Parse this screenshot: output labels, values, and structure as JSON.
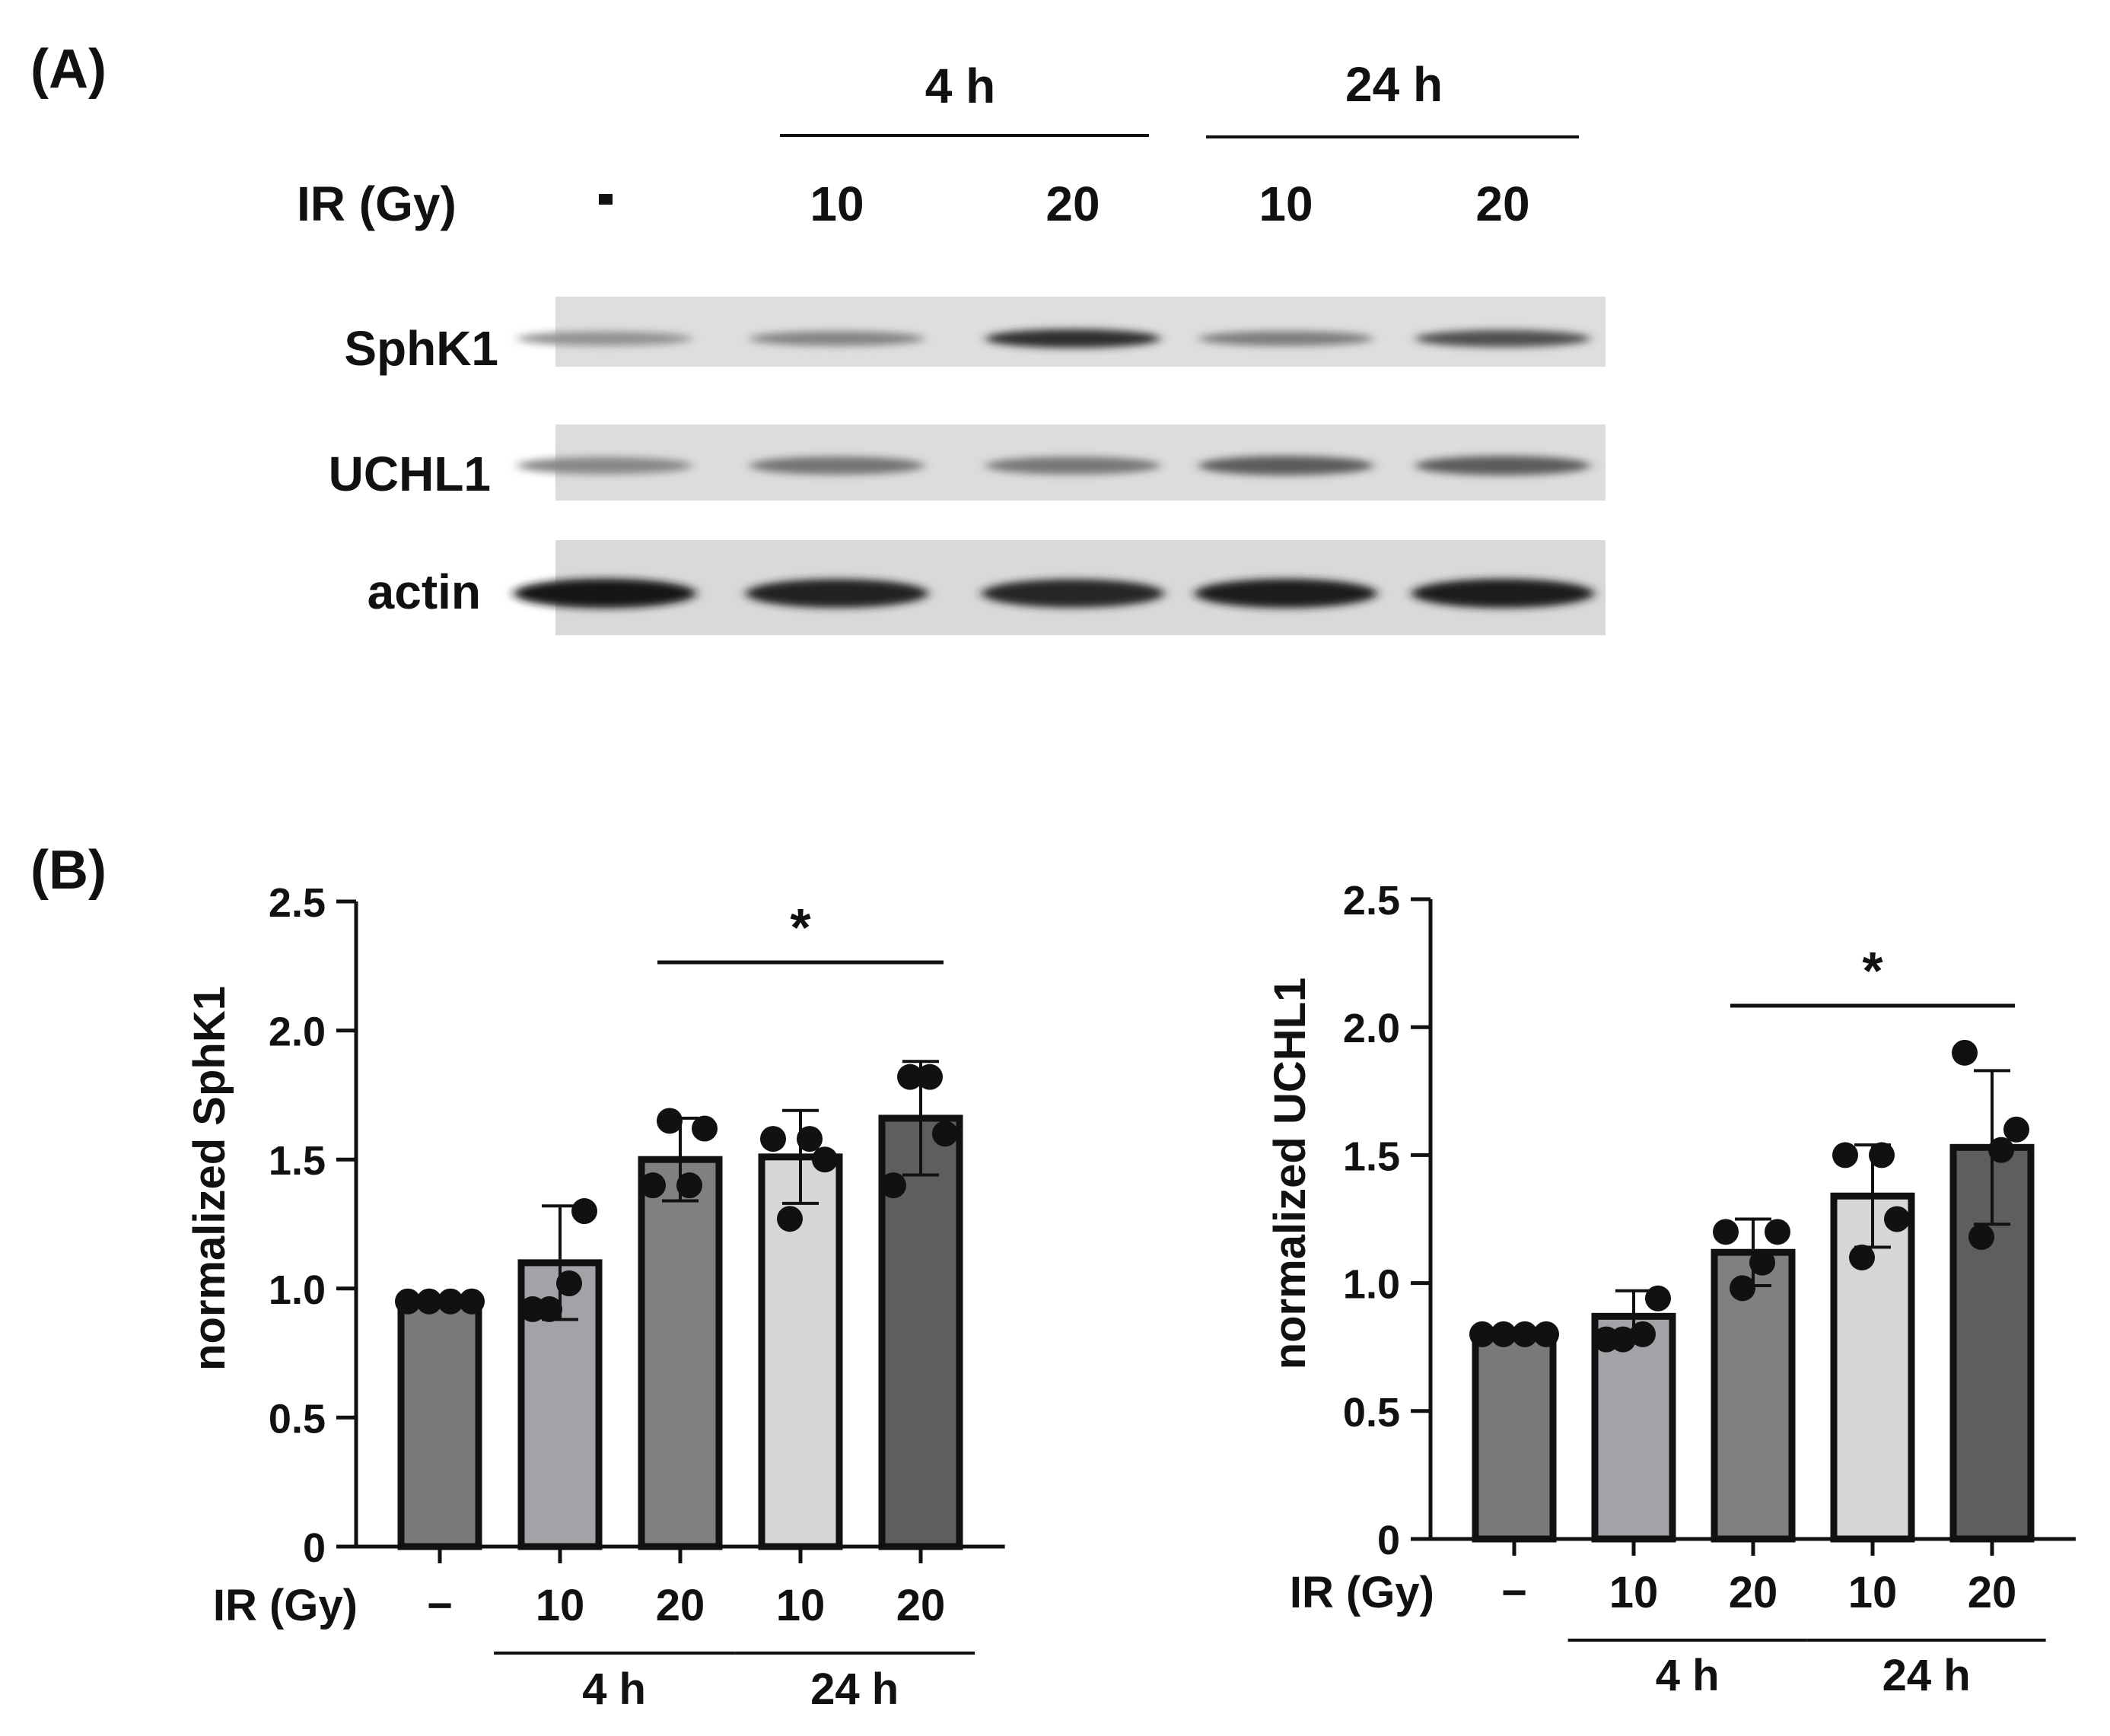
{
  "panel_a": {
    "label": "(A)",
    "time_labels": [
      "4 h",
      "24 h"
    ],
    "ir_label": "IR (Gy)",
    "lane_labels": [
      "-",
      "10",
      "20",
      "10",
      "20"
    ],
    "blots": [
      {
        "protein": "SphK1",
        "intensities": [
          0.35,
          0.42,
          0.85,
          0.45,
          0.68
        ]
      },
      {
        "protein": "UCHL1",
        "intensities": [
          0.4,
          0.5,
          0.48,
          0.62,
          0.62
        ]
      },
      {
        "protein": "actin",
        "intensities": [
          0.95,
          0.9,
          0.88,
          0.92,
          0.92
        ]
      }
    ]
  },
  "panel_b": {
    "label": "(B)",
    "significance": "*",
    "x_prefix": "IR (Gy)",
    "group_labels": [
      "4 h",
      "24 h"
    ]
  },
  "chart_data": [
    {
      "type": "bar",
      "title": "",
      "ylabel": "normalized SphK1",
      "xlabel": "IR (Gy)",
      "categories": [
        "−",
        "10",
        "20",
        "10",
        "20"
      ],
      "groups": [
        "",
        "4 h",
        "4 h",
        "24 h",
        "24 h"
      ],
      "values": [
        0.95,
        1.1,
        1.5,
        1.51,
        1.66
      ],
      "errors": [
        0.0,
        0.22,
        0.16,
        0.18,
        0.22
      ],
      "points": [
        [
          0.95,
          0.95,
          0.95,
          0.95
        ],
        [
          0.92,
          1.3,
          1.02,
          0.92
        ],
        [
          1.4,
          1.62,
          1.4,
          1.65
        ],
        [
          1.58,
          1.5,
          1.58,
          1.27
        ],
        [
          1.4,
          1.6,
          1.82,
          1.82
        ]
      ],
      "bar_colors": [
        "#7a7a7a",
        "#a2a2a7",
        "#808080",
        "#d6d6d6",
        "#5e5e5e"
      ],
      "ylim": [
        0,
        2.5
      ],
      "yticks": [
        "0",
        "0.5",
        "1.0",
        "1.5",
        "2.0",
        "2.5"
      ],
      "significance": {
        "from": 2,
        "to": 4,
        "label": "*"
      }
    },
    {
      "type": "bar",
      "title": "",
      "ylabel": "normalized UCHL1",
      "xlabel": "IR (Gy)",
      "categories": [
        "−",
        "10",
        "20",
        "10",
        "20"
      ],
      "groups": [
        "",
        "4 h",
        "4 h",
        "24 h",
        "24 h"
      ],
      "values": [
        0.8,
        0.87,
        1.12,
        1.34,
        1.53
      ],
      "errors": [
        0.0,
        0.1,
        0.13,
        0.2,
        0.3
      ],
      "points": [
        [
          0.8,
          0.8,
          0.8,
          0.8
        ],
        [
          0.78,
          0.94,
          0.8,
          0.78
        ],
        [
          1.2,
          1.2,
          1.08,
          0.98
        ],
        [
          1.5,
          1.25,
          1.5,
          1.1
        ],
        [
          1.9,
          1.6,
          1.52,
          1.18
        ]
      ],
      "bar_colors": [
        "#7a7a7a",
        "#a2a2a7",
        "#808080",
        "#d6d6d6",
        "#5e5e5e"
      ],
      "ylim": [
        0,
        2.5
      ],
      "yticks": [
        "0",
        "0.5",
        "1.0",
        "1.5",
        "2.0",
        "2.5"
      ],
      "significance": {
        "from": 2,
        "to": 4,
        "label": "*"
      }
    }
  ]
}
